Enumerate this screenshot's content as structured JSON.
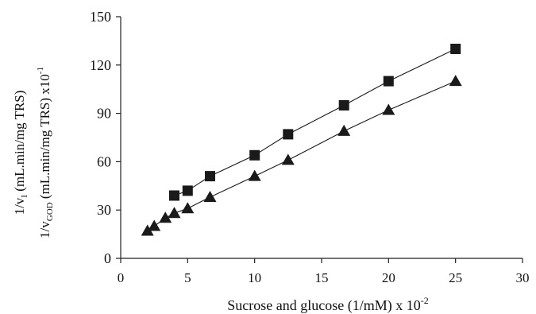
{
  "chart_data": {
    "type": "line",
    "title": "",
    "xlabel": {
      "prefix": "Sucrose and glucose (1/mM) x 10",
      "exponent": "-2"
    },
    "ylabel": {
      "line1_prefix": "1/v",
      "line1_subscript": "I",
      "line1_suffix": " (mL.min/mg TRS)",
      "line2_prefix": "1/v",
      "line2_subscript": "GOD",
      "line2_suffix": " (mL.min/mg TRS) x10",
      "line2_exponent": "-1"
    },
    "xlim": [
      0,
      30
    ],
    "ylim": [
      0,
      150
    ],
    "xticks": [
      0,
      5,
      10,
      15,
      20,
      25,
      30
    ],
    "yticks": [
      0,
      30,
      60,
      90,
      120,
      150
    ],
    "grid": false,
    "legend": "none",
    "series": [
      {
        "marker": "square",
        "color": "#1a1a1a",
        "x": [
          4,
          5,
          6.67,
          10,
          12.5,
          16.67,
          20,
          25
        ],
        "y": [
          39,
          42,
          51,
          64,
          77,
          95,
          110,
          130
        ]
      },
      {
        "marker": "triangle",
        "color": "#1a1a1a",
        "x": [
          2,
          2.5,
          3.33,
          4,
          5,
          6.67,
          10,
          12.5,
          16.67,
          20,
          25
        ],
        "y": [
          17,
          20,
          25,
          28,
          31,
          38,
          51,
          61,
          79,
          92,
          110
        ]
      }
    ]
  }
}
